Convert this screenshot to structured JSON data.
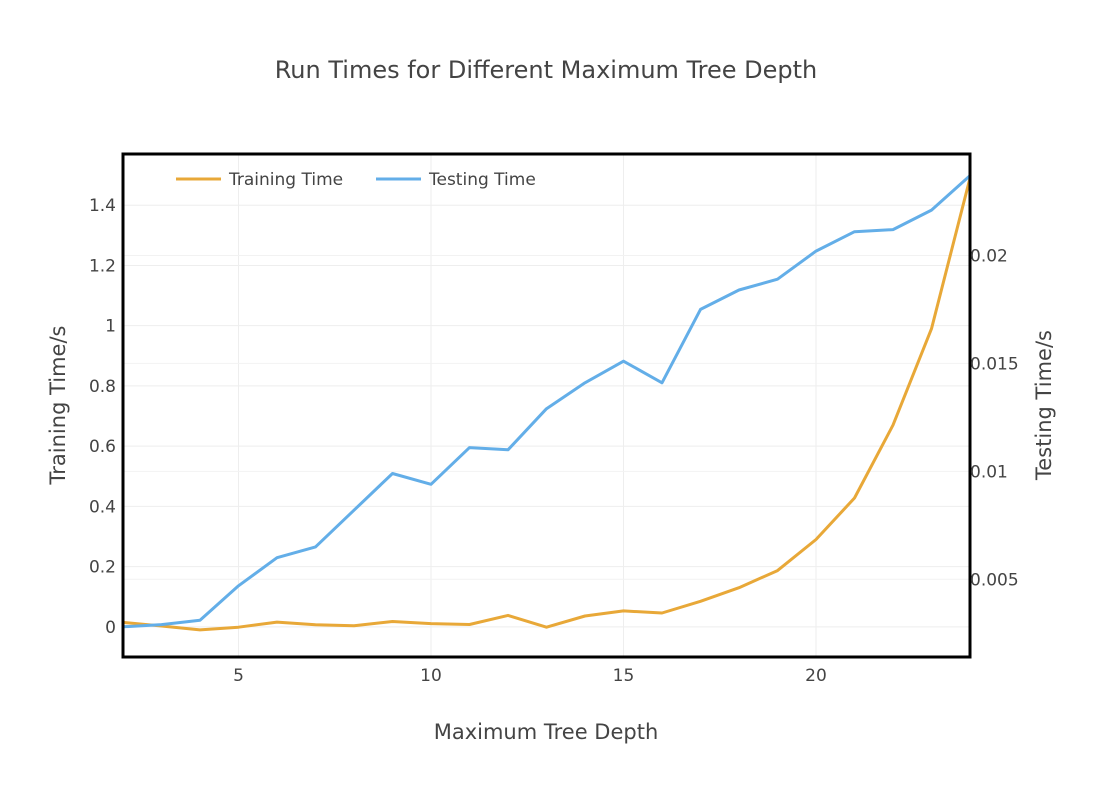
{
  "chart_data": {
    "type": "line",
    "title": "Run Times for Different Maximum Tree Depth",
    "xlabel": "Maximum Tree Depth",
    "ylabel": "Training Time/s",
    "y2label": "Testing Time/s",
    "xlim": [
      2,
      24
    ],
    "ylim": [
      -0.1,
      1.57
    ],
    "y2lim": [
      0.0014,
      0.0247
    ],
    "x_ticks": [
      5,
      10,
      15,
      20
    ],
    "y_ticks": [
      0,
      0.2,
      0.4,
      0.6,
      0.8,
      1,
      1.2,
      1.4
    ],
    "y2_ticks": [
      0.005,
      0.01,
      0.015,
      0.02
    ],
    "grid": true,
    "legend": "top-left, inside plot, horizontal",
    "x": [
      2,
      3,
      4,
      5,
      6,
      7,
      8,
      9,
      10,
      11,
      12,
      13,
      14,
      15,
      16,
      17,
      18,
      19,
      20,
      21,
      22,
      23,
      24
    ],
    "series": [
      {
        "name": "Training Time",
        "axis": "y",
        "color": "#e8a838",
        "values": [
          0.015,
          0.003,
          -0.01,
          -0.001,
          0.016,
          0.007,
          0.004,
          0.018,
          0.011,
          0.008,
          0.038,
          -0.001,
          0.036,
          0.053,
          0.046,
          0.085,
          0.13,
          0.187,
          0.29,
          0.428,
          0.67,
          0.99,
          1.49
        ]
      },
      {
        "name": "Testing Time",
        "axis": "y2",
        "color": "#63aee8",
        "values": [
          0.0028,
          0.0029,
          0.0031,
          0.0047,
          0.006,
          0.0065,
          0.0082,
          0.0099,
          0.0094,
          0.0111,
          0.011,
          0.0129,
          0.0141,
          0.0151,
          0.0141,
          0.0175,
          0.0184,
          0.0189,
          0.0202,
          0.0211,
          0.0212,
          0.0221,
          0.0237
        ]
      }
    ]
  }
}
